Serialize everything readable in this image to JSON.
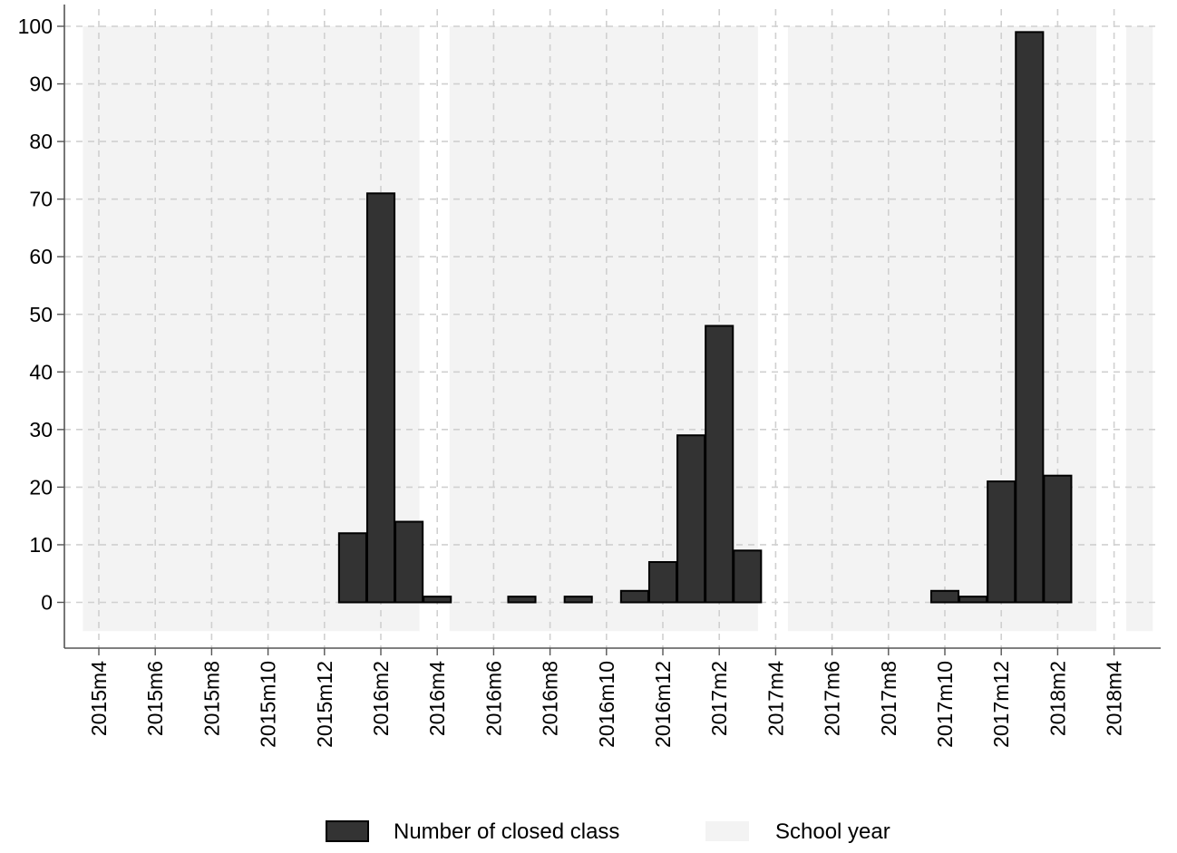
{
  "chart_data": {
    "type": "bar",
    "title": "",
    "xlabel": "",
    "ylabel": "",
    "ylim": [
      -5,
      100
    ],
    "yticks": [
      0,
      10,
      20,
      30,
      40,
      50,
      60,
      70,
      80,
      90,
      100
    ],
    "grid": true,
    "legend_position": "bottom",
    "colors": {
      "bar_fill": "#333333",
      "bar_stroke": "#000000",
      "school_year_fill": "#f3f3f3",
      "grid": "#d0d0d0"
    },
    "x_ticks": [
      {
        "month": "2015-04",
        "label": "2015m4"
      },
      {
        "month": "2015-06",
        "label": "2015m6"
      },
      {
        "month": "2015-08",
        "label": "2015m8"
      },
      {
        "month": "2015-10",
        "label": "2015m10"
      },
      {
        "month": "2015-12",
        "label": "2015m12"
      },
      {
        "month": "2016-02",
        "label": "2016m2"
      },
      {
        "month": "2016-04",
        "label": "2016m4"
      },
      {
        "month": "2016-06",
        "label": "2016m6"
      },
      {
        "month": "2016-08",
        "label": "2016m8"
      },
      {
        "month": "2016-10",
        "label": "2016m10"
      },
      {
        "month": "2016-12",
        "label": "2016m12"
      },
      {
        "month": "2017-02",
        "label": "2017m2"
      },
      {
        "month": "2017-04",
        "label": "2017m4"
      },
      {
        "month": "2017-06",
        "label": "2017m6"
      },
      {
        "month": "2017-08",
        "label": "2017m8"
      },
      {
        "month": "2017-10",
        "label": "2017m10"
      },
      {
        "month": "2017-12",
        "label": "2017m12"
      },
      {
        "month": "2018-02",
        "label": "2018m2"
      },
      {
        "month": "2018-04",
        "label": "2018m4"
      }
    ],
    "series": [
      {
        "name": "Number of closed class",
        "points": [
          {
            "month": "2016-01",
            "value": 12
          },
          {
            "month": "2016-02",
            "value": 71
          },
          {
            "month": "2016-03",
            "value": 14
          },
          {
            "month": "2016-04",
            "value": 1
          },
          {
            "month": "2016-07",
            "value": 1
          },
          {
            "month": "2016-09",
            "value": 1
          },
          {
            "month": "2016-11",
            "value": 2
          },
          {
            "month": "2016-12",
            "value": 7
          },
          {
            "month": "2017-01",
            "value": 29
          },
          {
            "month": "2017-02",
            "value": 48
          },
          {
            "month": "2017-03",
            "value": 9
          },
          {
            "month": "2017-10",
            "value": 2
          },
          {
            "month": "2017-11",
            "value": 1
          },
          {
            "month": "2017-12",
            "value": 21
          },
          {
            "month": "2018-01",
            "value": 99
          },
          {
            "month": "2018-02",
            "value": 22
          }
        ]
      }
    ],
    "school_years": [
      {
        "start": "2015-03",
        "end": "2016-03"
      },
      {
        "start": "2016-04",
        "end": "2017-03"
      },
      {
        "start": "2017-04",
        "end": "2018-03"
      },
      {
        "start": "2018-04",
        "end": "2018-05"
      }
    ],
    "legend": [
      {
        "key": "bar",
        "label": "Number of closed class"
      },
      {
        "key": "band",
        "label": "School year"
      }
    ]
  }
}
